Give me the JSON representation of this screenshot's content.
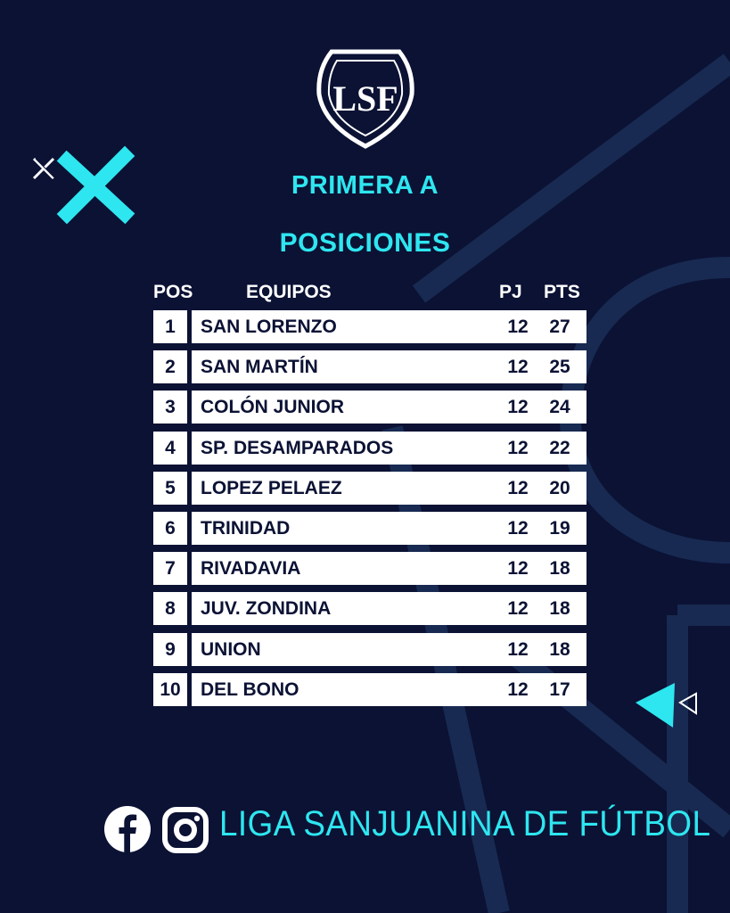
{
  "title": "PRIMERA A",
  "subtitle": "POSICIONES",
  "table": {
    "headers": {
      "pos": "POS",
      "team": "EQUIPOS",
      "pj": "PJ",
      "pts": "PTS"
    },
    "rows": [
      {
        "pos": "1",
        "team": "SAN LORENZO",
        "pj": "12",
        "pts": "27"
      },
      {
        "pos": "2",
        "team": "SAN MARTÍN",
        "pj": "12",
        "pts": "25"
      },
      {
        "pos": "3",
        "team": "COLÓN JUNIOR",
        "pj": "12",
        "pts": "24"
      },
      {
        "pos": "4",
        "team": "SP. DESAMPARADOS",
        "pj": "12",
        "pts": "22"
      },
      {
        "pos": "5",
        "team": "LOPEZ PELAEZ",
        "pj": "12",
        "pts": "20"
      },
      {
        "pos": "6",
        "team": "TRINIDAD",
        "pj": "12",
        "pts": "19"
      },
      {
        "pos": "7",
        "team": "RIVADAVIA",
        "pj": "12",
        "pts": "18"
      },
      {
        "pos": "8",
        "team": "JUV. ZONDINA",
        "pj": "12",
        "pts": "18"
      },
      {
        "pos": "9",
        "team": "UNION",
        "pj": "12",
        "pts": "18"
      },
      {
        "pos": "10",
        "team": "DEL BONO",
        "pj": "12",
        "pts": "17"
      }
    ]
  },
  "footer": {
    "brand": "LIGA SANJUANINA DE FÚTBOL",
    "icons": [
      "facebook-icon",
      "instagram-icon"
    ]
  },
  "logo_text": "LSF",
  "colors": {
    "background": "#0b1234",
    "accent": "#2ee6f0",
    "row_bg": "#ffffff",
    "row_text": "#0b1234"
  }
}
